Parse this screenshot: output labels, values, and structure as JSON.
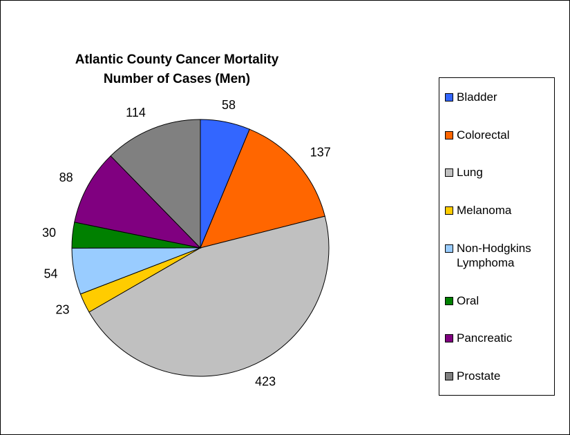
{
  "chart_data": {
    "type": "pie",
    "title": "Atlantic County Cancer Mortality",
    "subtitle": "Number of Cases (Men)",
    "categories": [
      "Bladder",
      "Colorectal",
      "Lung",
      "Melanoma",
      "Non-Hodgkins Lymphoma",
      "Oral",
      "Pancreatic",
      "Prostate"
    ],
    "values": [
      58,
      137,
      423,
      23,
      54,
      30,
      88,
      114
    ],
    "colors": [
      "#3366ff",
      "#ff6600",
      "#c0c0c0",
      "#ffcc00",
      "#99ccff",
      "#008000",
      "#800080",
      "#808080"
    ],
    "legend": "right"
  }
}
